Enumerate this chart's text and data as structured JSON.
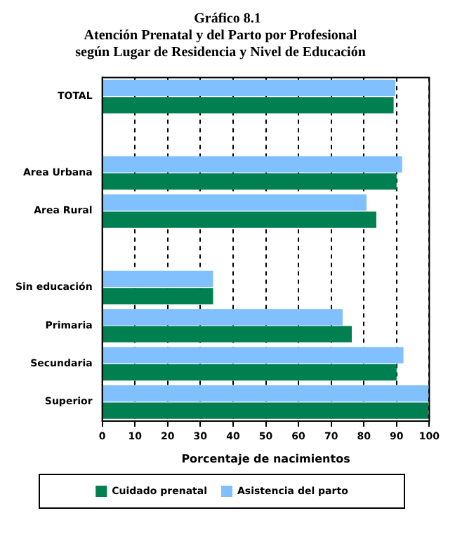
{
  "chart_data": {
    "type": "bar",
    "orientation": "horizontal",
    "title": "Gráfico 8.1",
    "subtitle": "Atención Prenatal y del Parto por Profesional según Lugar de Residencia y Nivel de Educación",
    "xlabel": "Porcentaje de nacimientos",
    "categories": [
      "TOTAL",
      null,
      "Area Urbana",
      "Area Rural",
      null,
      "Sin educación",
      "Primaria",
      "Secundaria",
      "Superior"
    ],
    "series": [
      {
        "name": "Cuidado prenatal",
        "color": "#008050",
        "values": [
          89.1,
          null,
          90.0,
          83.8,
          null,
          33.9,
          76.3,
          90.0,
          99.7
        ]
      },
      {
        "name": "Asistencia del parto",
        "color": "#80c0ff",
        "values": [
          89.6,
          null,
          91.7,
          80.8,
          null,
          33.9,
          73.5,
          92.1,
          99.7
        ]
      }
    ],
    "xlim": [
      0,
      100
    ],
    "xticks": [
      0,
      10,
      20,
      30,
      40,
      50,
      60,
      70,
      80,
      90,
      100
    ],
    "grid": "x",
    "legend": "bottom"
  }
}
